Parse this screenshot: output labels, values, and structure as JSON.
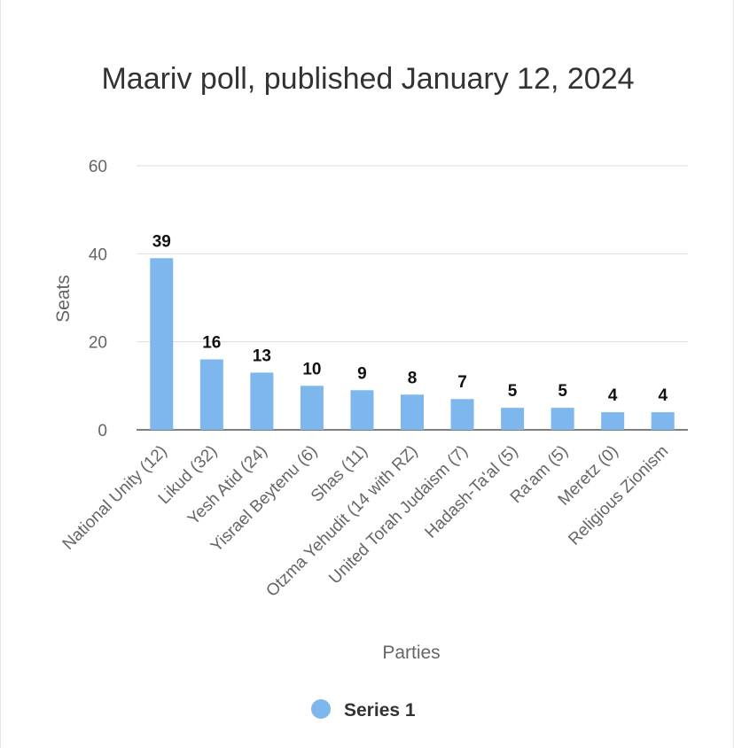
{
  "chart_data": {
    "type": "bar",
    "title": "Maariv poll, published January 12, 2024",
    "xlabel": "Parties",
    "ylabel": "Seats",
    "ylim": [
      0,
      60
    ],
    "yticks": [
      "0",
      "20",
      "40",
      "60"
    ],
    "categories": [
      "National Unity (12)",
      "Likud (32)",
      "Yesh Atid (24)",
      "Yisrael Beytenu (6)",
      "Shas (11)",
      "Otzma Yehudit (14 with RZ)",
      "United Torah Judaism (7)",
      "Hadash-Ta'al (5)",
      "Ra'am (5)",
      "Meretz (0)",
      "Religious Zionism"
    ],
    "series": [
      {
        "name": "Series 1",
        "values": [
          39,
          16,
          13,
          10,
          9,
          8,
          7,
          5,
          5,
          4,
          4
        ]
      }
    ],
    "grid": true,
    "legend": "bottom",
    "bar_color": "#7eb6ee"
  }
}
